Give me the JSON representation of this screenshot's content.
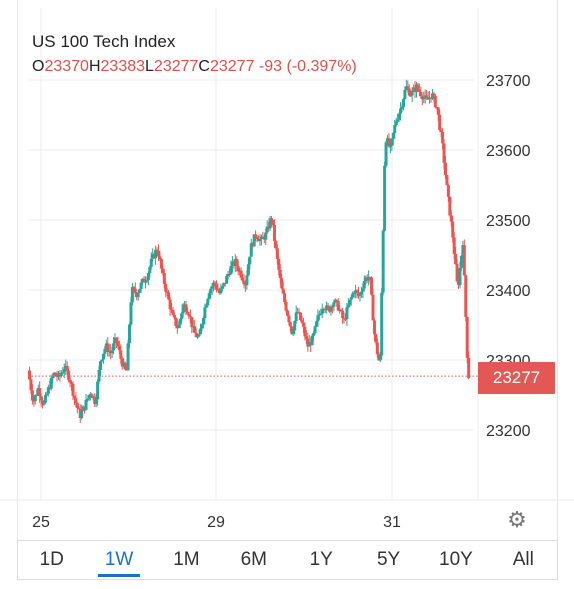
{
  "chart": {
    "title": "US 100 Tech Index",
    "ohlc": {
      "o_label": "O",
      "o_value": "23370",
      "h_label": "H",
      "h_value": "23383",
      "l_label": "L",
      "l_value": "23277",
      "c_label": "C",
      "c_value": "23277",
      "change": "-93 (-0.397%)"
    },
    "last_price_label": "23277",
    "settings_icon": "gear-icon",
    "colors": {
      "up": "#26a69a",
      "down": "#ef5350",
      "tag": "#e35855",
      "accent": "#1a6fd1"
    }
  },
  "range_tabs": [
    {
      "label": "1D"
    },
    {
      "label": "1W",
      "active": true
    },
    {
      "label": "1M"
    },
    {
      "label": "6M"
    },
    {
      "label": "1Y"
    },
    {
      "label": "5Y"
    },
    {
      "label": "10Y"
    },
    {
      "label": "All"
    }
  ],
  "chart_data": {
    "type": "candlestick",
    "y_ticks": [
      23200,
      23300,
      23400,
      23500,
      23600,
      23700
    ],
    "y_tick_labels": [
      "23200",
      "23300",
      "23400",
      "23500",
      "23600",
      "23700"
    ],
    "ylim": [
      23100,
      23800
    ],
    "x_tick_labels": [
      "25",
      "29",
      "31"
    ],
    "last_price": 23277,
    "grid": true,
    "price_path": [
      [
        0,
        23285
      ],
      [
        0.5,
        23240
      ],
      [
        1,
        23260
      ],
      [
        1.5,
        23235
      ],
      [
        2,
        23260
      ],
      [
        2.5,
        23280
      ],
      [
        3,
        23275
      ],
      [
        3.5,
        23290
      ],
      [
        4,
        23275
      ],
      [
        4.5,
        23245
      ],
      [
        5,
        23220
      ],
      [
        5.5,
        23235
      ],
      [
        6,
        23255
      ],
      [
        6.5,
        23240
      ],
      [
        7,
        23300
      ],
      [
        7.5,
        23320
      ],
      [
        8,
        23310
      ],
      [
        8.5,
        23330
      ],
      [
        9,
        23300
      ],
      [
        9.5,
        23280
      ],
      [
        10,
        23400
      ],
      [
        10.5,
        23395
      ],
      [
        11,
        23410
      ],
      [
        11.5,
        23420
      ],
      [
        12,
        23445
      ],
      [
        12.5,
        23460
      ],
      [
        13,
        23420
      ],
      [
        13.5,
        23390
      ],
      [
        14,
        23360
      ],
      [
        14.5,
        23345
      ],
      [
        15,
        23380
      ],
      [
        15.5,
        23370
      ],
      [
        16,
        23340
      ],
      [
        16.5,
        23330
      ],
      [
        17,
        23370
      ],
      [
        17.5,
        23400
      ],
      [
        18,
        23410
      ],
      [
        18.5,
        23395
      ],
      [
        19,
        23410
      ],
      [
        19.5,
        23430
      ],
      [
        20,
        23440
      ],
      [
        20.5,
        23425
      ],
      [
        21,
        23410
      ],
      [
        21.5,
        23460
      ],
      [
        22,
        23480
      ],
      [
        22.5,
        23470
      ],
      [
        23,
        23480
      ],
      [
        23.5,
        23505
      ],
      [
        24,
        23450
      ],
      [
        24.5,
        23400
      ],
      [
        25,
        23370
      ],
      [
        25.5,
        23340
      ],
      [
        26,
        23370
      ],
      [
        26.5,
        23350
      ],
      [
        27,
        23320
      ],
      [
        27.5,
        23330
      ],
      [
        28,
        23360
      ],
      [
        28.5,
        23380
      ],
      [
        29,
        23370
      ],
      [
        29.5,
        23385
      ],
      [
        30,
        23375
      ],
      [
        30.5,
        23355
      ],
      [
        31,
        23380
      ],
      [
        31.5,
        23400
      ],
      [
        32,
        23390
      ],
      [
        32.5,
        23415
      ],
      [
        33,
        23420
      ],
      [
        33.5,
        23330
      ],
      [
        34,
        23290
      ],
      [
        34.5,
        23620
      ],
      [
        35,
        23600
      ],
      [
        35.5,
        23640
      ],
      [
        36,
        23660
      ],
      [
        36.5,
        23690
      ],
      [
        37,
        23680
      ],
      [
        37.5,
        23690
      ],
      [
        38,
        23680
      ],
      [
        38.5,
        23670
      ],
      [
        39,
        23680
      ],
      [
        39.5,
        23660
      ],
      [
        40,
        23610
      ],
      [
        40.5,
        23540
      ],
      [
        41,
        23480
      ],
      [
        41.5,
        23400
      ],
      [
        42,
        23470
      ],
      [
        42.5,
        23277
      ]
    ]
  }
}
